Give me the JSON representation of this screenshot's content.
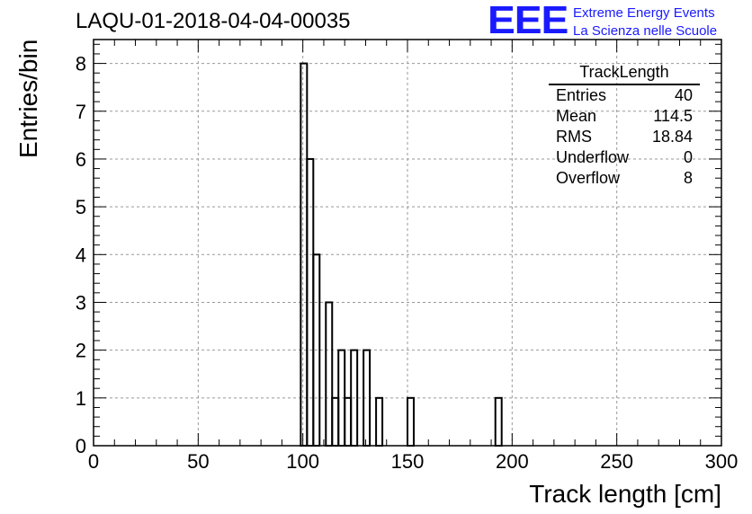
{
  "run_title": "LAQU-01-2018-04-04-00035",
  "brand": {
    "logo": "EEE",
    "line1": "Extreme Energy Events",
    "line2": "La Scienza nelle Scuole",
    "color": "#1a1aff"
  },
  "stats_box": {
    "title": "TrackLength",
    "rows": [
      {
        "label": "Entries",
        "value": "40"
      },
      {
        "label": "Mean",
        "value": "114.5"
      },
      {
        "label": "RMS",
        "value": "18.84"
      },
      {
        "label": "Underflow",
        "value": "0"
      },
      {
        "label": "Overflow",
        "value": "8"
      }
    ]
  },
  "chart_data": {
    "type": "bar",
    "style": "step-histogram",
    "xlabel": "Track length [cm]",
    "ylabel": "Entries/bin",
    "xlim": [
      0,
      300
    ],
    "ylim": [
      0,
      8.5
    ],
    "grid": true,
    "x_ticks": [
      0,
      50,
      100,
      150,
      200,
      250,
      300
    ],
    "y_ticks": [
      0,
      1,
      2,
      3,
      4,
      5,
      6,
      7,
      8
    ],
    "bin_width": 3,
    "bins": [
      {
        "x_low": 99,
        "count": 8
      },
      {
        "x_low": 102,
        "count": 6
      },
      {
        "x_low": 105,
        "count": 4
      },
      {
        "x_low": 111,
        "count": 3
      },
      {
        "x_low": 114,
        "count": 1
      },
      {
        "x_low": 117,
        "count": 2
      },
      {
        "x_low": 120,
        "count": 1
      },
      {
        "x_low": 123,
        "count": 2
      },
      {
        "x_low": 129,
        "count": 2
      },
      {
        "x_low": 135,
        "count": 1
      },
      {
        "x_low": 150,
        "count": 1
      },
      {
        "x_low": 192,
        "count": 1
      }
    ]
  }
}
